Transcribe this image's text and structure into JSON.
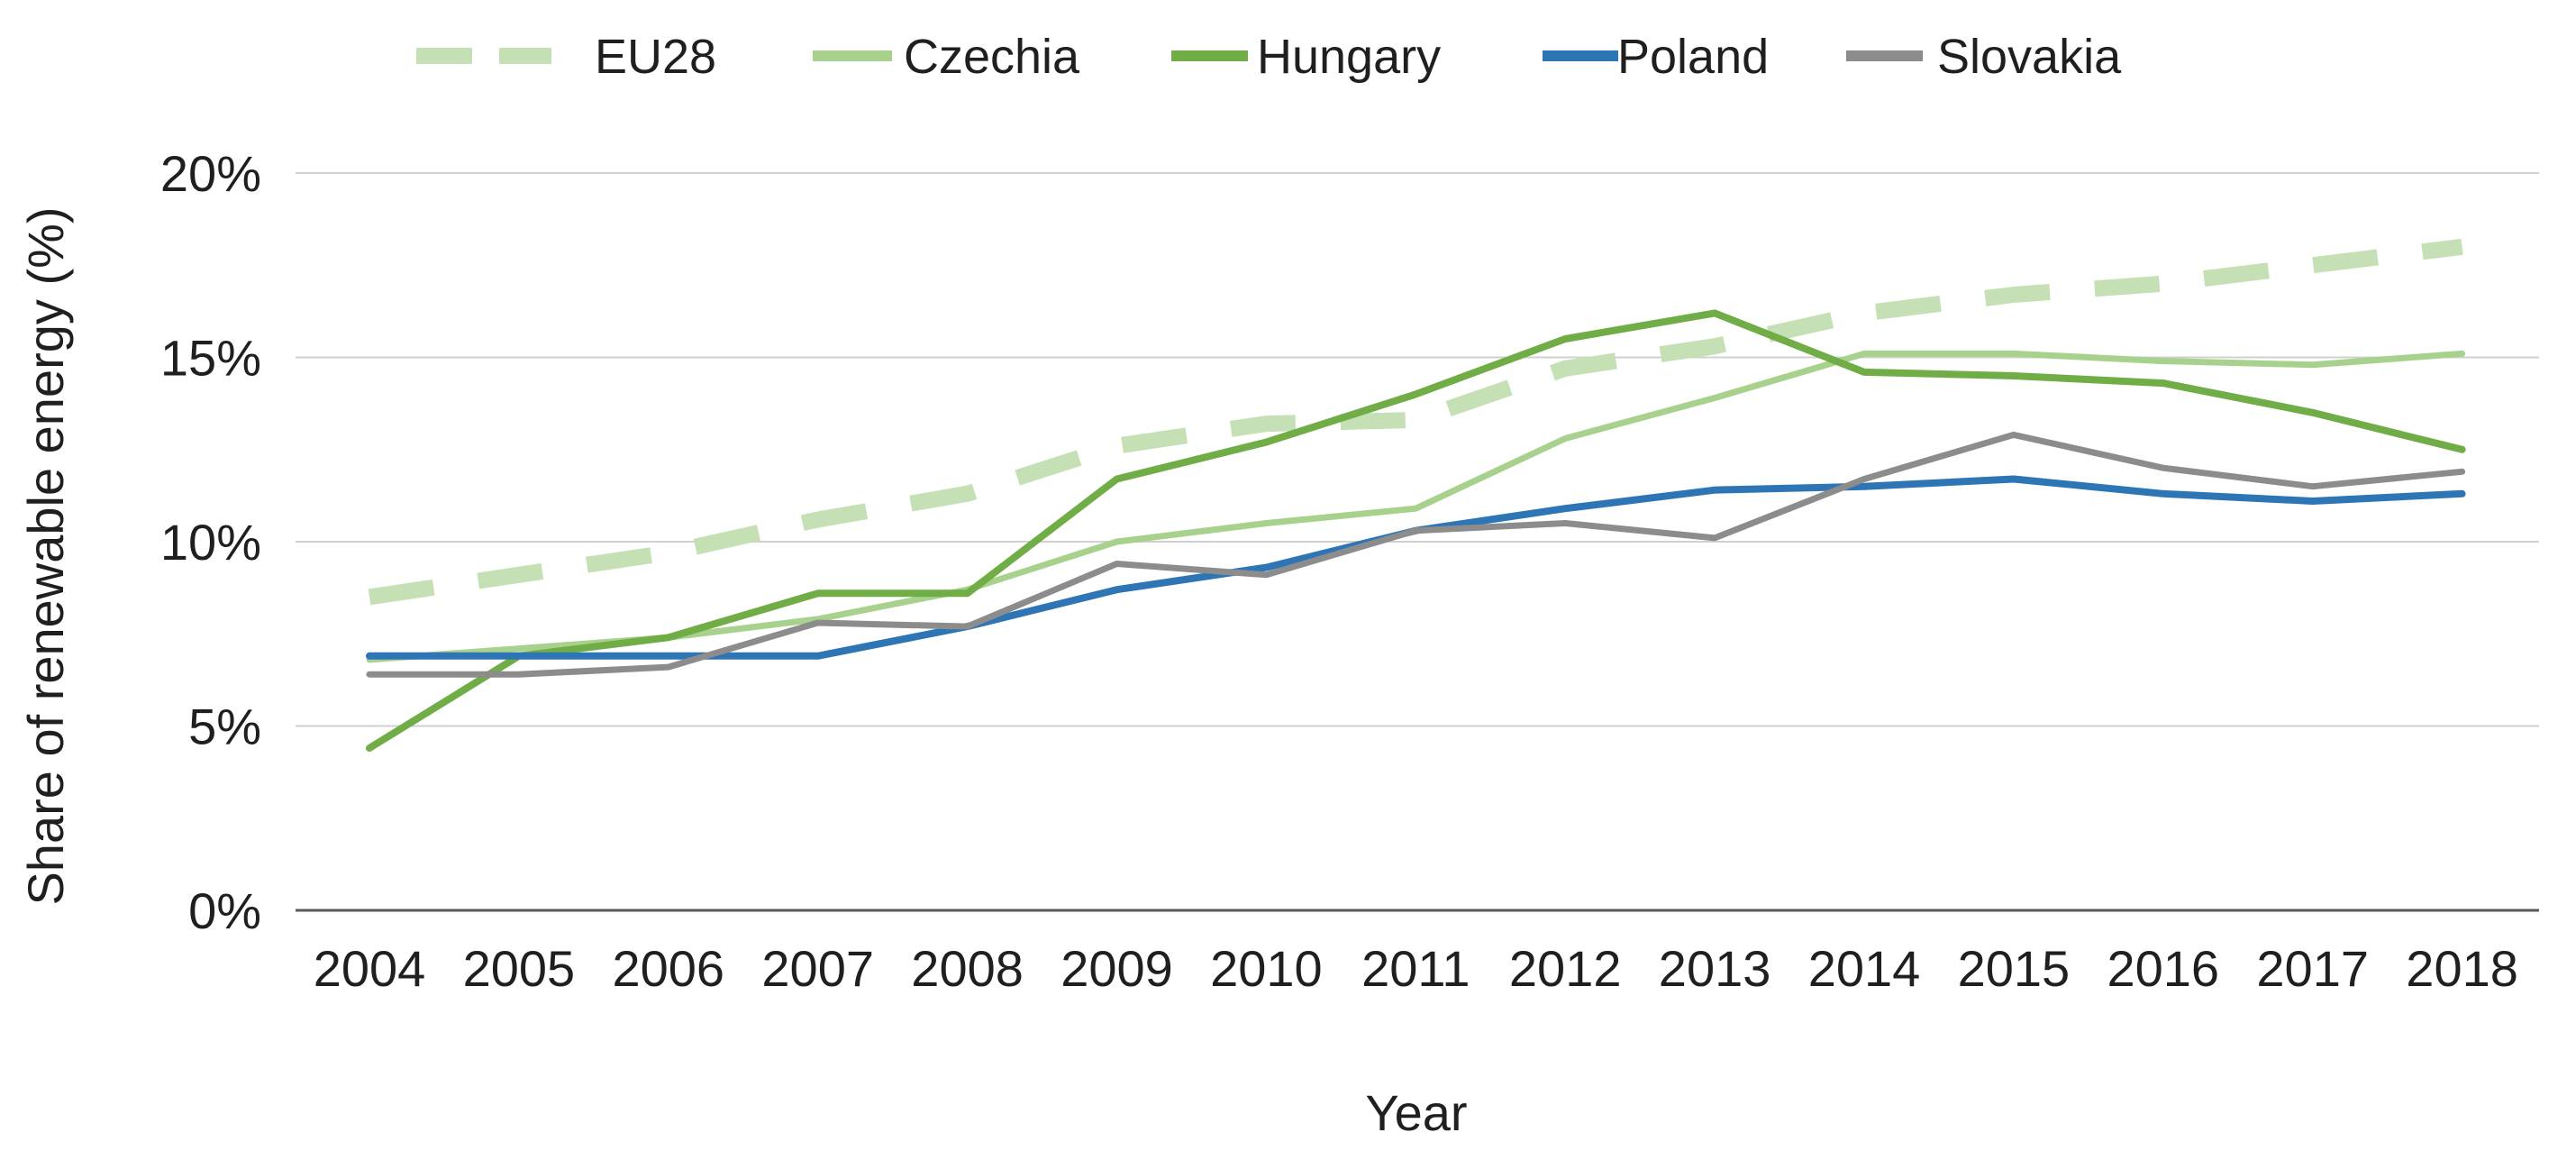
{
  "chart_data": {
    "type": "line",
    "title": "",
    "xlabel": "Year",
    "ylabel": "Share of renewable energy (%)",
    "ylim": [
      0,
      20
    ],
    "yticks": [
      {
        "value": 0,
        "label": "0%"
      },
      {
        "value": 5,
        "label": "5%"
      },
      {
        "value": 10,
        "label": "10%"
      },
      {
        "value": 15,
        "label": "15%"
      },
      {
        "value": 20,
        "label": "20%"
      }
    ],
    "grid": true,
    "legend_position": "top",
    "categories": [
      "2004",
      "2005",
      "2006",
      "2007",
      "2008",
      "2009",
      "2010",
      "2011",
      "2012",
      "2013",
      "2014",
      "2015",
      "2016",
      "2017",
      "2018"
    ],
    "series": [
      {
        "name": "EU28",
        "color": "#c5e0b4",
        "style": "dashed",
        "values": [
          8.5,
          9.1,
          9.7,
          10.6,
          11.3,
          12.6,
          13.2,
          13.3,
          14.7,
          15.3,
          16.2,
          16.7,
          17.0,
          17.5,
          18.0
        ]
      },
      {
        "name": "Czechia",
        "color": "#a9d18e",
        "style": "solid",
        "values": [
          6.8,
          7.1,
          7.4,
          7.9,
          8.7,
          10.0,
          10.5,
          10.9,
          12.8,
          13.9,
          15.1,
          15.1,
          14.9,
          14.8,
          15.1
        ]
      },
      {
        "name": "Hungary",
        "color": "#70ad47",
        "style": "solid",
        "values": [
          4.4,
          6.9,
          7.4,
          8.6,
          8.6,
          11.7,
          12.7,
          14.0,
          15.5,
          16.2,
          14.6,
          14.5,
          14.3,
          13.5,
          12.5
        ]
      },
      {
        "name": "Poland",
        "color": "#2e75b6",
        "style": "solid",
        "values": [
          6.9,
          6.9,
          6.9,
          6.9,
          7.7,
          8.7,
          9.3,
          10.3,
          10.9,
          11.4,
          11.5,
          11.7,
          11.3,
          11.1,
          11.3
        ]
      },
      {
        "name": "Slovakia",
        "color": "#8c8c8c",
        "style": "solid",
        "values": [
          6.4,
          6.4,
          6.6,
          7.8,
          7.7,
          9.4,
          9.1,
          10.3,
          10.5,
          10.1,
          11.7,
          12.9,
          12.0,
          11.5,
          11.9
        ]
      }
    ]
  }
}
